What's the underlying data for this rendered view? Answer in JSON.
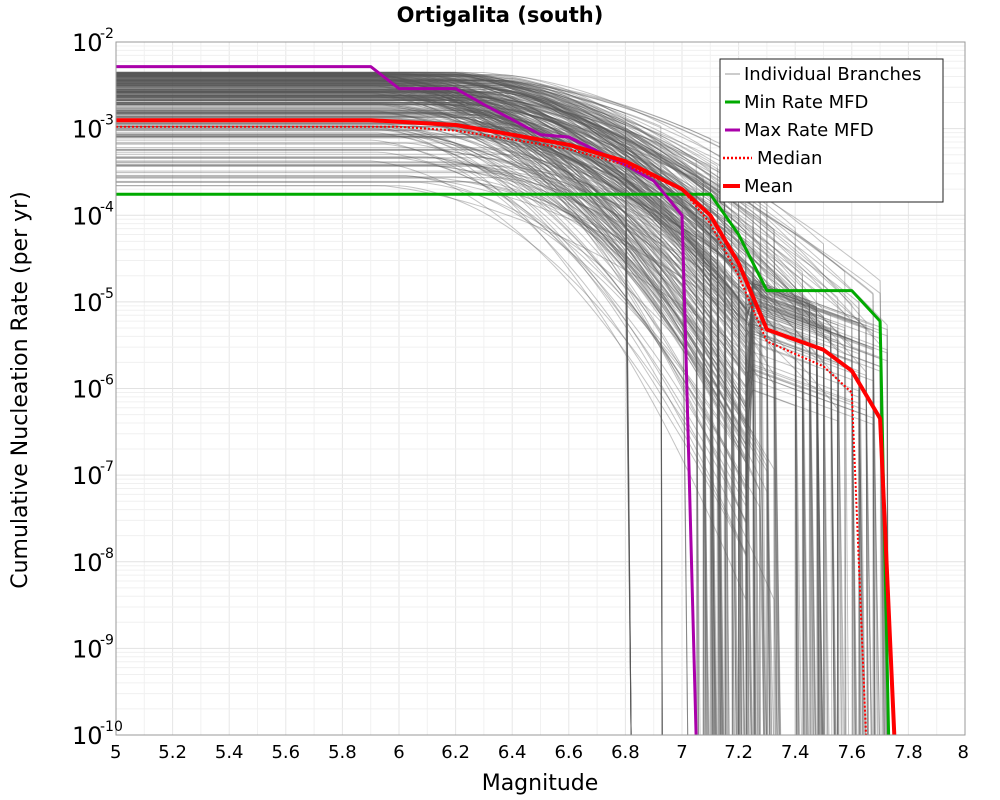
{
  "chart_data": {
    "type": "line",
    "title": "Ortigalita (south)",
    "xlabel": "Magnitude",
    "ylabel": "Cumulative Nucleation Rate (per yr)",
    "xlim": [
      5,
      8
    ],
    "ylim": [
      1e-10,
      0.01
    ],
    "y_scale": "log",
    "grid": true,
    "legend_position": "top-right",
    "x_ticks": [
      "5",
      "5.2",
      "5.4",
      "5.6",
      "5.8",
      "6",
      "6.2",
      "6.4",
      "6.6",
      "6.8",
      "7",
      "7.2",
      "7.4",
      "7.6",
      "7.8",
      "8"
    ],
    "x_tick_values": [
      5,
      5.2,
      5.4,
      5.6,
      5.8,
      6,
      6.2,
      6.4,
      6.6,
      6.8,
      7,
      7.2,
      7.4,
      7.6,
      7.8,
      8
    ],
    "y_ticks": [
      {
        "base": "10",
        "exp": "-10",
        "value": 1e-10
      },
      {
        "base": "10",
        "exp": "-9",
        "value": 1e-09
      },
      {
        "base": "10",
        "exp": "-8",
        "value": 1e-08
      },
      {
        "base": "10",
        "exp": "-7",
        "value": 1e-07
      },
      {
        "base": "10",
        "exp": "-6",
        "value": 1e-06
      },
      {
        "base": "10",
        "exp": "-5",
        "value": 1e-05
      },
      {
        "base": "10",
        "exp": "-4",
        "value": 0.0001
      },
      {
        "base": "10",
        "exp": "-3",
        "value": 0.001
      },
      {
        "base": "10",
        "exp": "-2",
        "value": 0.01
      }
    ],
    "series": [
      {
        "name": "Min Rate MFD",
        "color": "#00aa00",
        "style": "solid",
        "x": [
          5.0,
          7.1,
          7.2,
          7.3,
          7.6,
          7.7,
          7.73
        ],
        "y": [
          0.000175,
          0.000175,
          6e-05,
          1.35e-05,
          1.35e-05,
          6e-06,
          1e-10
        ]
      },
      {
        "name": "Max Rate MFD",
        "color": "#aa00aa",
        "style": "solid",
        "x": [
          5.0,
          5.9,
          6.0,
          6.2,
          6.3,
          6.5,
          6.6,
          6.7,
          6.8,
          6.9,
          7.0,
          7.01,
          7.05
        ],
        "y": [
          0.0052,
          0.0052,
          0.0029,
          0.0029,
          0.0019,
          0.00085,
          0.0008,
          0.00055,
          0.00038,
          0.00025,
          0.0001,
          8e-06,
          1e-10
        ]
      },
      {
        "name": "Median",
        "color": "#ff0000",
        "style": "dotted",
        "x": [
          5.0,
          6.0,
          6.2,
          6.4,
          6.6,
          6.8,
          7.0,
          7.1,
          7.2,
          7.3,
          7.5,
          7.6,
          7.65
        ],
        "y": [
          0.00105,
          0.00105,
          0.00095,
          0.00075,
          0.00058,
          0.00038,
          0.0002,
          8e-05,
          2e-05,
          3.5e-06,
          1.8e-06,
          9e-07,
          1e-10
        ]
      },
      {
        "name": "Mean",
        "color": "#ff0000",
        "style": "solid",
        "x": [
          5.0,
          5.9,
          6.0,
          6.2,
          6.4,
          6.6,
          6.8,
          7.0,
          7.1,
          7.2,
          7.3,
          7.5,
          7.6,
          7.7,
          7.75
        ],
        "y": [
          0.00125,
          0.00125,
          0.0012,
          0.0011,
          0.00085,
          0.00065,
          0.00042,
          0.0002,
          0.0001,
          2.8e-05,
          4.8e-06,
          2.8e-06,
          1.6e-06,
          4.5e-07,
          1e-10
        ]
      }
    ],
    "branches": {
      "name": "Individual Branches",
      "color": "#555555"
    }
  }
}
